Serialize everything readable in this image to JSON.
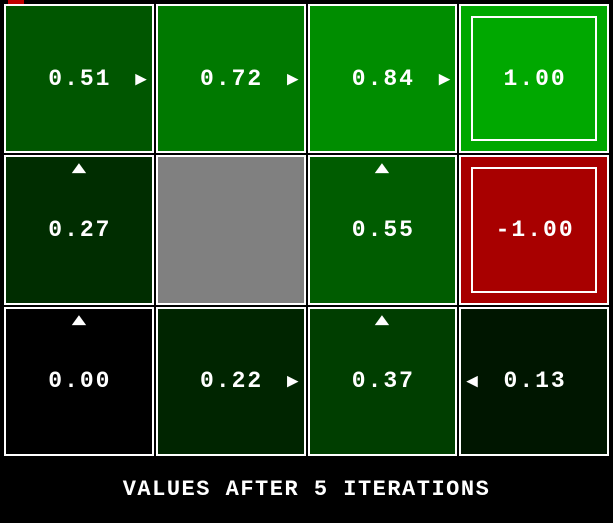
{
  "app": {
    "caption": "VALUES AFTER 5 ITERATIONS",
    "background": "#000000"
  },
  "colors": {
    "cell_border": "#ffffff",
    "value_text": "#ffffff",
    "wall": "#808080",
    "terminal_positive": "#00a800",
    "terminal_negative": "#a80000",
    "artifact_red": "#c00000"
  },
  "grid": {
    "columns": 4,
    "rows": 3,
    "arrow_glyphs": {
      "right": "▶",
      "up": "▲",
      "left": "◀"
    },
    "cells": [
      {
        "value": "0.51",
        "bg": "#005600",
        "arrow": "right"
      },
      {
        "value": "0.72",
        "bg": "#007900",
        "arrow": "right"
      },
      {
        "value": "0.84",
        "bg": "#008d00",
        "arrow": "right"
      },
      {
        "value": "1.00",
        "bg": "#00a800",
        "terminal": true
      },
      {
        "value": "0.27",
        "bg": "#002d00",
        "arrow": "up"
      },
      {
        "wall": true,
        "bg": "#808080"
      },
      {
        "value": "0.55",
        "bg": "#005c00",
        "arrow": "up"
      },
      {
        "value": "-1.00",
        "bg": "#a80000",
        "terminal": true
      },
      {
        "value": "0.00",
        "bg": "#000000",
        "arrow": "up"
      },
      {
        "value": "0.22",
        "bg": "#002500",
        "arrow": "right"
      },
      {
        "value": "0.37",
        "bg": "#003e00",
        "arrow": "up"
      },
      {
        "value": "0.13",
        "bg": "#001600",
        "arrow": "left"
      }
    ]
  },
  "chart_data": {
    "type": "heatmap",
    "title": "VALUES AFTER 5 ITERATIONS",
    "rows": 3,
    "columns": 4,
    "values": [
      [
        0.51,
        0.72,
        0.84,
        1.0
      ],
      [
        0.27,
        null,
        0.55,
        -1.0
      ],
      [
        0.0,
        0.22,
        0.37,
        0.13
      ]
    ],
    "policy": [
      [
        "right",
        "right",
        "right",
        "terminal"
      ],
      [
        "up",
        "wall",
        "up",
        "terminal"
      ],
      [
        "up",
        "right",
        "up",
        "left"
      ]
    ]
  }
}
